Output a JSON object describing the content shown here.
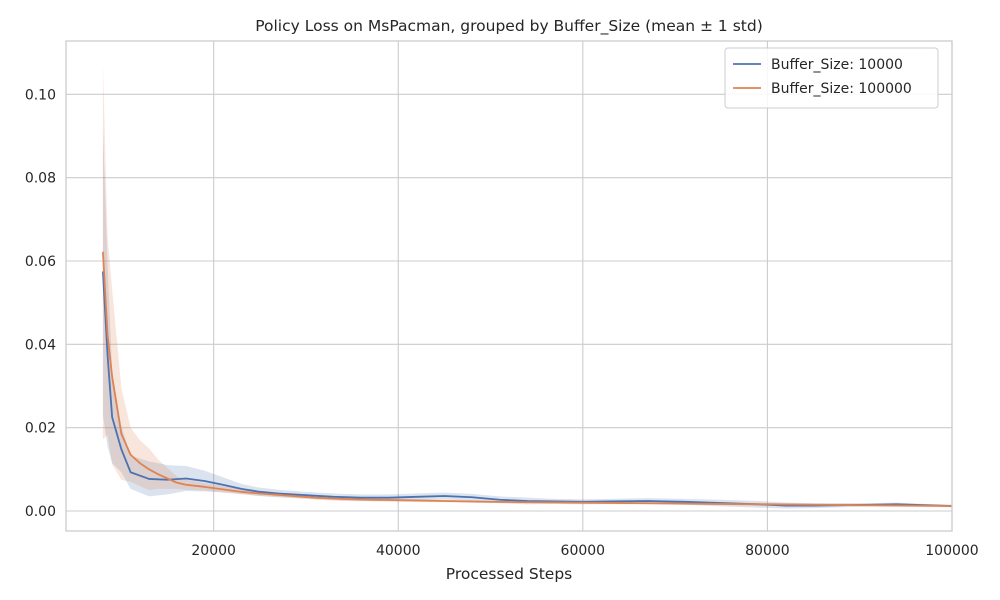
{
  "chart_data": {
    "type": "line",
    "title": "Policy Loss on MsPacman, grouped by Buffer_Size (mean ± 1 std)",
    "xlabel": "Processed Steps",
    "ylabel": "",
    "xlim": [
      4000,
      100000
    ],
    "ylim": [
      -0.0048,
      0.1128
    ],
    "xticks": [
      20000,
      40000,
      60000,
      80000,
      100000
    ],
    "xtick_labels": [
      "20000",
      "40000",
      "60000",
      "80000",
      "100000"
    ],
    "yticks": [
      0.0,
      0.02,
      0.04,
      0.06,
      0.08,
      0.1
    ],
    "ytick_labels": [
      "0.00",
      "0.02",
      "0.04",
      "0.06",
      "0.08",
      "0.10"
    ],
    "grid": true,
    "legend_position": "top-right",
    "series": [
      {
        "name": "Buffer_Size: 10000",
        "color": "#4c72b0",
        "band_color": "#4c72b0",
        "x": [
          8000,
          8500,
          9000,
          10000,
          11000,
          13000,
          15000,
          17000,
          19000,
          21000,
          23000,
          25000,
          27000,
          30000,
          33000,
          36000,
          39000,
          42000,
          45000,
          48000,
          51000,
          54000,
          57000,
          60000,
          63000,
          67000,
          71000,
          75000,
          79000,
          82000,
          85000,
          88000,
          91000,
          94000,
          97000,
          100000
        ],
        "values": [
          0.0575,
          0.0375,
          0.0225,
          0.0148,
          0.0093,
          0.0077,
          0.0075,
          0.0078,
          0.0072,
          0.0063,
          0.0053,
          0.0046,
          0.0042,
          0.0038,
          0.0034,
          0.0032,
          0.0032,
          0.0034,
          0.0036,
          0.0033,
          0.0027,
          0.0024,
          0.0023,
          0.0022,
          0.0023,
          0.0024,
          0.0022,
          0.0019,
          0.0016,
          0.0013,
          0.0013,
          0.0014,
          0.0015,
          0.0016,
          0.0014,
          0.0012
        ],
        "std": [
          0.0345,
          0.022,
          0.011,
          0.0055,
          0.004,
          0.0042,
          0.0035,
          0.003,
          0.0025,
          0.0018,
          0.0012,
          0.001,
          0.0009,
          0.0008,
          0.0008,
          0.0008,
          0.0008,
          0.0008,
          0.0008,
          0.0008,
          0.0008,
          0.0008,
          0.0006,
          0.0006,
          0.0006,
          0.0007,
          0.0007,
          0.0008,
          0.0008,
          0.0007,
          0.0006,
          0.0005,
          0.0004,
          0.0004,
          0.0003,
          0.0003
        ]
      },
      {
        "name": "Buffer_Size: 100000",
        "color": "#dd8452",
        "band_color": "#dd8452",
        "x": [
          8000,
          8500,
          9000,
          10000,
          11000,
          12000,
          13000,
          14000,
          15000,
          16000,
          17000,
          19000,
          21000,
          23000,
          25000,
          28000,
          31000,
          34000,
          37000,
          40000,
          45000,
          50000,
          55000,
          60000,
          65000,
          70000,
          75000,
          80000,
          85000,
          90000,
          95000,
          100000
        ],
        "values": [
          0.0622,
          0.0423,
          0.0322,
          0.0185,
          0.0135,
          0.0115,
          0.01,
          0.0088,
          0.0078,
          0.0068,
          0.0063,
          0.0058,
          0.0052,
          0.0046,
          0.0042,
          0.0037,
          0.0032,
          0.0029,
          0.0027,
          0.0026,
          0.0024,
          0.0022,
          0.0021,
          0.002,
          0.0019,
          0.0018,
          0.0017,
          0.0016,
          0.0015,
          0.0014,
          0.0013,
          0.0012
        ],
        "std": [
          0.045,
          0.024,
          0.021,
          0.011,
          0.0065,
          0.0055,
          0.005,
          0.0035,
          0.0025,
          0.0015,
          0.0012,
          0.0009,
          0.0008,
          0.0006,
          0.0006,
          0.0005,
          0.0005,
          0.0005,
          0.0004,
          0.0004,
          0.0003,
          0.0003,
          0.0003,
          0.0003,
          0.0003,
          0.0003,
          0.0003,
          0.0003,
          0.0003,
          0.0003,
          0.0003,
          0.0003
        ]
      }
    ]
  }
}
